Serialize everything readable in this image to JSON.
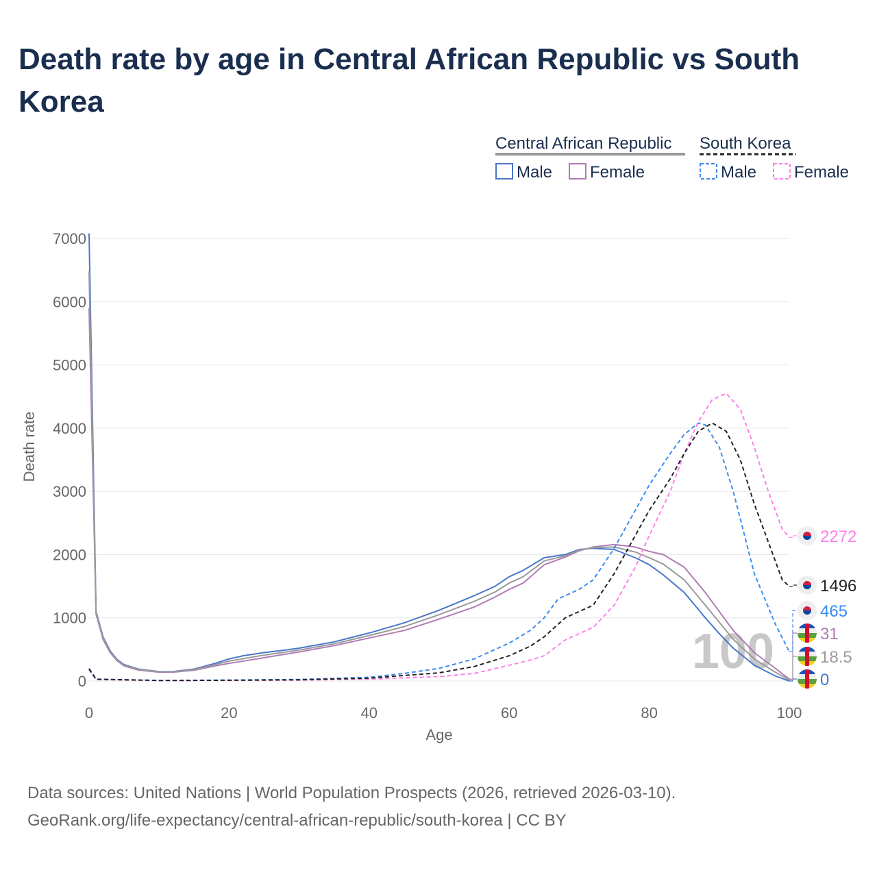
{
  "chart_data": {
    "type": "line",
    "title": "Death rate by age in Central African Republic vs South Korea",
    "xlabel": "Age",
    "ylabel": "Death rate",
    "xlim": [
      0,
      100
    ],
    "ylim": [
      0,
      7000
    ],
    "xticks": [
      "0",
      "20",
      "40",
      "60",
      "80",
      "100"
    ],
    "yticks": [
      "0",
      "1000",
      "2000",
      "3000",
      "4000",
      "5000",
      "6000",
      "7000"
    ],
    "grid": true,
    "legend_groups": [
      {
        "name": "Central African Republic",
        "items": [
          "Male",
          "Female"
        ]
      },
      {
        "name": "South Korea",
        "items": [
          "Male",
          "Female"
        ]
      }
    ],
    "watermark": "100",
    "series": [
      {
        "name": "Central African Republic Male",
        "color": "#4a77c9",
        "dash": false,
        "end_label": "0",
        "points": [
          [
            0,
            7080
          ],
          [
            1,
            1100
          ],
          [
            2,
            700
          ],
          [
            3,
            480
          ],
          [
            4,
            340
          ],
          [
            5,
            260
          ],
          [
            7,
            190
          ],
          [
            10,
            150
          ],
          [
            12,
            150
          ],
          [
            15,
            190
          ],
          [
            18,
            280
          ],
          [
            20,
            350
          ],
          [
            22,
            400
          ],
          [
            25,
            450
          ],
          [
            28,
            490
          ],
          [
            30,
            520
          ],
          [
            35,
            620
          ],
          [
            40,
            760
          ],
          [
            45,
            920
          ],
          [
            50,
            1120
          ],
          [
            55,
            1350
          ],
          [
            58,
            1500
          ],
          [
            60,
            1650
          ],
          [
            62,
            1750
          ],
          [
            65,
            1950
          ],
          [
            68,
            2000
          ],
          [
            70,
            2080
          ],
          [
            72,
            2100
          ],
          [
            75,
            2080
          ],
          [
            78,
            1950
          ],
          [
            80,
            1840
          ],
          [
            82,
            1680
          ],
          [
            85,
            1400
          ],
          [
            88,
            1000
          ],
          [
            90,
            750
          ],
          [
            92,
            520
          ],
          [
            95,
            250
          ],
          [
            98,
            80
          ],
          [
            100,
            0
          ]
        ]
      },
      {
        "name": "Central African Republic Female",
        "color": "#b07cb4",
        "dash": false,
        "end_label": "31",
        "points": [
          [
            0,
            5900
          ],
          [
            1,
            1060
          ],
          [
            2,
            660
          ],
          [
            3,
            450
          ],
          [
            4,
            320
          ],
          [
            5,
            240
          ],
          [
            7,
            175
          ],
          [
            10,
            140
          ],
          [
            12,
            140
          ],
          [
            15,
            170
          ],
          [
            18,
            240
          ],
          [
            20,
            280
          ],
          [
            25,
            370
          ],
          [
            30,
            460
          ],
          [
            35,
            560
          ],
          [
            40,
            680
          ],
          [
            45,
            800
          ],
          [
            50,
            980
          ],
          [
            55,
            1170
          ],
          [
            58,
            1330
          ],
          [
            60,
            1450
          ],
          [
            62,
            1550
          ],
          [
            65,
            1840
          ],
          [
            68,
            1960
          ],
          [
            70,
            2060
          ],
          [
            72,
            2120
          ],
          [
            75,
            2160
          ],
          [
            78,
            2120
          ],
          [
            80,
            2050
          ],
          [
            82,
            2000
          ],
          [
            85,
            1800
          ],
          [
            88,
            1400
          ],
          [
            90,
            1100
          ],
          [
            92,
            800
          ],
          [
            95,
            450
          ],
          [
            98,
            200
          ],
          [
            100,
            31
          ]
        ]
      },
      {
        "name": "Central African Republic Total",
        "color": "#9a9a9a",
        "dash": false,
        "end_label": "18.5",
        "points": [
          [
            0,
            6480
          ],
          [
            1,
            1080
          ],
          [
            2,
            680
          ],
          [
            3,
            465
          ],
          [
            4,
            330
          ],
          [
            5,
            250
          ],
          [
            7,
            182
          ],
          [
            10,
            145
          ],
          [
            12,
            145
          ],
          [
            15,
            180
          ],
          [
            18,
            260
          ],
          [
            20,
            315
          ],
          [
            25,
            410
          ],
          [
            30,
            490
          ],
          [
            35,
            590
          ],
          [
            40,
            720
          ],
          [
            45,
            860
          ],
          [
            50,
            1050
          ],
          [
            55,
            1260
          ],
          [
            58,
            1410
          ],
          [
            60,
            1550
          ],
          [
            62,
            1650
          ],
          [
            65,
            1900
          ],
          [
            68,
            1980
          ],
          [
            70,
            2070
          ],
          [
            72,
            2110
          ],
          [
            75,
            2120
          ],
          [
            78,
            2040
          ],
          [
            80,
            1950
          ],
          [
            82,
            1850
          ],
          [
            85,
            1600
          ],
          [
            88,
            1200
          ],
          [
            90,
            930
          ],
          [
            92,
            660
          ],
          [
            95,
            350
          ],
          [
            98,
            140
          ],
          [
            100,
            18.5
          ]
        ]
      },
      {
        "name": "South Korea Male",
        "color": "#3a8cf0",
        "dash": true,
        "end_label": "465",
        "points": [
          [
            0,
            200
          ],
          [
            1,
            30
          ],
          [
            10,
            10
          ],
          [
            20,
            15
          ],
          [
            30,
            25
          ],
          [
            40,
            60
          ],
          [
            45,
            120
          ],
          [
            50,
            200
          ],
          [
            55,
            350
          ],
          [
            60,
            600
          ],
          [
            63,
            800
          ],
          [
            65,
            1000
          ],
          [
            67,
            1300
          ],
          [
            70,
            1450
          ],
          [
            72,
            1600
          ],
          [
            75,
            2100
          ],
          [
            78,
            2700
          ],
          [
            80,
            3100
          ],
          [
            83,
            3600
          ],
          [
            85,
            3900
          ],
          [
            87,
            4080
          ],
          [
            88,
            4050
          ],
          [
            90,
            3700
          ],
          [
            92,
            3000
          ],
          [
            95,
            1700
          ],
          [
            98,
            900
          ],
          [
            100,
            465
          ]
        ]
      },
      {
        "name": "South Korea Female",
        "color": "#ff80e8",
        "dash": true,
        "end_label": "2272",
        "points": [
          [
            0,
            180
          ],
          [
            1,
            25
          ],
          [
            10,
            8
          ],
          [
            20,
            10
          ],
          [
            30,
            15
          ],
          [
            40,
            30
          ],
          [
            50,
            70
          ],
          [
            55,
            120
          ],
          [
            60,
            250
          ],
          [
            63,
            330
          ],
          [
            65,
            400
          ],
          [
            68,
            650
          ],
          [
            72,
            850
          ],
          [
            75,
            1200
          ],
          [
            78,
            1800
          ],
          [
            80,
            2300
          ],
          [
            83,
            3000
          ],
          [
            85,
            3600
          ],
          [
            87,
            4100
          ],
          [
            89,
            4450
          ],
          [
            91,
            4550
          ],
          [
            93,
            4300
          ],
          [
            95,
            3700
          ],
          [
            97,
            3000
          ],
          [
            99,
            2400
          ],
          [
            100,
            2272
          ]
        ]
      },
      {
        "name": "South Korea Total",
        "color": "#222222",
        "dash": true,
        "end_label": "1496",
        "points": [
          [
            0,
            190
          ],
          [
            1,
            28
          ],
          [
            10,
            9
          ],
          [
            20,
            12
          ],
          [
            30,
            20
          ],
          [
            40,
            45
          ],
          [
            50,
            130
          ],
          [
            55,
            230
          ],
          [
            60,
            400
          ],
          [
            63,
            550
          ],
          [
            65,
            700
          ],
          [
            68,
            1000
          ],
          [
            72,
            1200
          ],
          [
            75,
            1700
          ],
          [
            78,
            2300
          ],
          [
            80,
            2700
          ],
          [
            83,
            3200
          ],
          [
            85,
            3600
          ],
          [
            87,
            3950
          ],
          [
            89,
            4080
          ],
          [
            91,
            3950
          ],
          [
            93,
            3500
          ],
          [
            95,
            2800
          ],
          [
            97,
            2200
          ],
          [
            99,
            1600
          ],
          [
            100,
            1496
          ]
        ]
      }
    ]
  },
  "footer": {
    "line1": "Data sources: United Nations | World Population Prospects (2026, retrieved 2026-03-10).",
    "line2": "GeoRank.org/life-expectancy/central-african-republic/south-korea | CC BY"
  }
}
